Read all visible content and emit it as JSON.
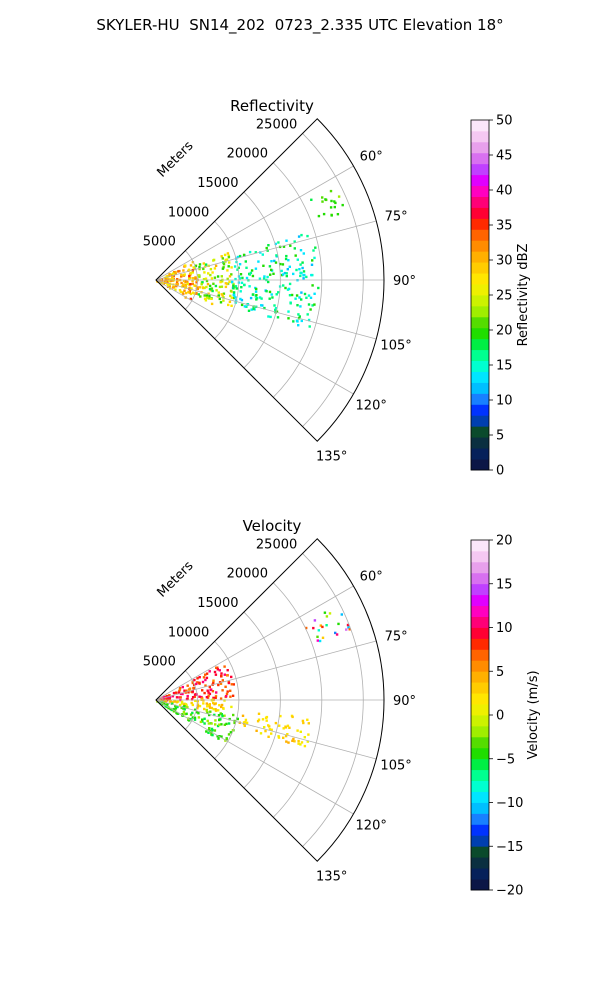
{
  "figure_title": "SKYLER-HU  SN14_202  0723_2.335 UTC Elevation 18°",
  "chart_data": [
    {
      "type": "heatmap",
      "subtype": "polar-sector-ppi",
      "title": "Reflectivity",
      "radial_label": "Meters",
      "radial_ticks": [
        "5000",
        "10000",
        "15000",
        "20000",
        "25000"
      ],
      "radial_tick_values": [
        5000,
        10000,
        15000,
        20000,
        25000
      ],
      "rlim": [
        0,
        27500
      ],
      "angle_ticks": [
        "60°",
        "75°",
        "90°",
        "105°",
        "120°",
        "135°"
      ],
      "angle_tick_values": [
        60,
        75,
        90,
        105,
        120,
        135
      ],
      "theta_range_deg": [
        45,
        135
      ],
      "grid": true,
      "colorbar": {
        "label": "Reflectivity dBZ",
        "ticks": [
          "0",
          "5",
          "10",
          "15",
          "20",
          "25",
          "30",
          "35",
          "40",
          "45",
          "50"
        ],
        "range": [
          0,
          50
        ],
        "colors": [
          "#0b1646",
          "#06215a",
          "#0a2f40",
          "#0a4a2c",
          "#003fb0",
          "#0033ff",
          "#1880ff",
          "#00bfff",
          "#00e5ff",
          "#00ffd0",
          "#00ff90",
          "#00ee44",
          "#20dd00",
          "#55dd00",
          "#a0ee00",
          "#ccf200",
          "#eef000",
          "#ffe600",
          "#ffcc00",
          "#ffb000",
          "#ff8c00",
          "#ff6400",
          "#ff2a00",
          "#ff0033",
          "#ff0077",
          "#ff00c0",
          "#e000ff",
          "#c040ff",
          "#d870f0",
          "#e8a0ec",
          "#f5c8f2",
          "#fce6fa"
        ]
      },
      "features": [
        {
          "range_m": [
            0,
            5000
          ],
          "az_deg": [
            60,
            120
          ],
          "value_range": [
            25,
            35
          ]
        },
        {
          "range_m": [
            5000,
            9500
          ],
          "az_deg": [
            68,
            113
          ],
          "value_range": [
            18,
            30
          ]
        },
        {
          "range_m": [
            9000,
            19500
          ],
          "az_deg": [
            72,
            108
          ],
          "value_range": [
            12,
            20
          ]
        },
        {
          "range_m": [
            21000,
            25000
          ],
          "az_deg": [
            62,
            70
          ],
          "value_range": [
            18,
            22
          ]
        }
      ]
    },
    {
      "type": "heatmap",
      "subtype": "polar-sector-ppi",
      "title": "Velocity",
      "radial_label": "Meters",
      "radial_ticks": [
        "5000",
        "10000",
        "15000",
        "20000",
        "25000"
      ],
      "radial_tick_values": [
        5000,
        10000,
        15000,
        20000,
        25000
      ],
      "rlim": [
        0,
        27500
      ],
      "angle_ticks": [
        "60°",
        "75°",
        "90°",
        "105°",
        "120°",
        "135°"
      ],
      "angle_tick_values": [
        60,
        75,
        90,
        105,
        120,
        135
      ],
      "theta_range_deg": [
        45,
        135
      ],
      "grid": true,
      "colorbar": {
        "label": "Velocity (m/s)",
        "ticks": [
          "−20",
          "−15",
          "−10",
          "−5",
          "0",
          "5",
          "10",
          "15",
          "20"
        ],
        "range": [
          -20,
          20
        ],
        "colors": [
          "#0b1646",
          "#06215a",
          "#0a2f40",
          "#0a4a2c",
          "#003fb0",
          "#0033ff",
          "#1880ff",
          "#00bfff",
          "#00e5ff",
          "#00ffd0",
          "#00ff90",
          "#00ee44",
          "#20dd00",
          "#55dd00",
          "#a0ee00",
          "#ccf200",
          "#eef000",
          "#ffe600",
          "#ffcc00",
          "#ffb000",
          "#ff8c00",
          "#ff6400",
          "#ff2a00",
          "#ff0033",
          "#ff0077",
          "#ff00c0",
          "#e000ff",
          "#c040ff",
          "#d870f0",
          "#e8a0ec",
          "#f5c8f2",
          "#fce6fa"
        ]
      },
      "features": [
        {
          "range_m": [
            0,
            9500
          ],
          "az_deg": [
            60,
            88
          ],
          "value_range": [
            6,
            11
          ]
        },
        {
          "range_m": [
            0,
            9000
          ],
          "az_deg": [
            88,
            100
          ],
          "value_range": [
            0,
            5
          ]
        },
        {
          "range_m": [
            0,
            10000
          ],
          "az_deg": [
            100,
            122
          ],
          "value_range": [
            -6,
            -2
          ]
        },
        {
          "range_m": [
            10000,
            19000
          ],
          "az_deg": [
            96,
            108
          ],
          "value_range": [
            1,
            4
          ]
        },
        {
          "range_m": [
            20000,
            25000
          ],
          "az_deg": [
            62,
            70
          ],
          "value_range": [
            -12,
            16
          ]
        }
      ]
    }
  ]
}
